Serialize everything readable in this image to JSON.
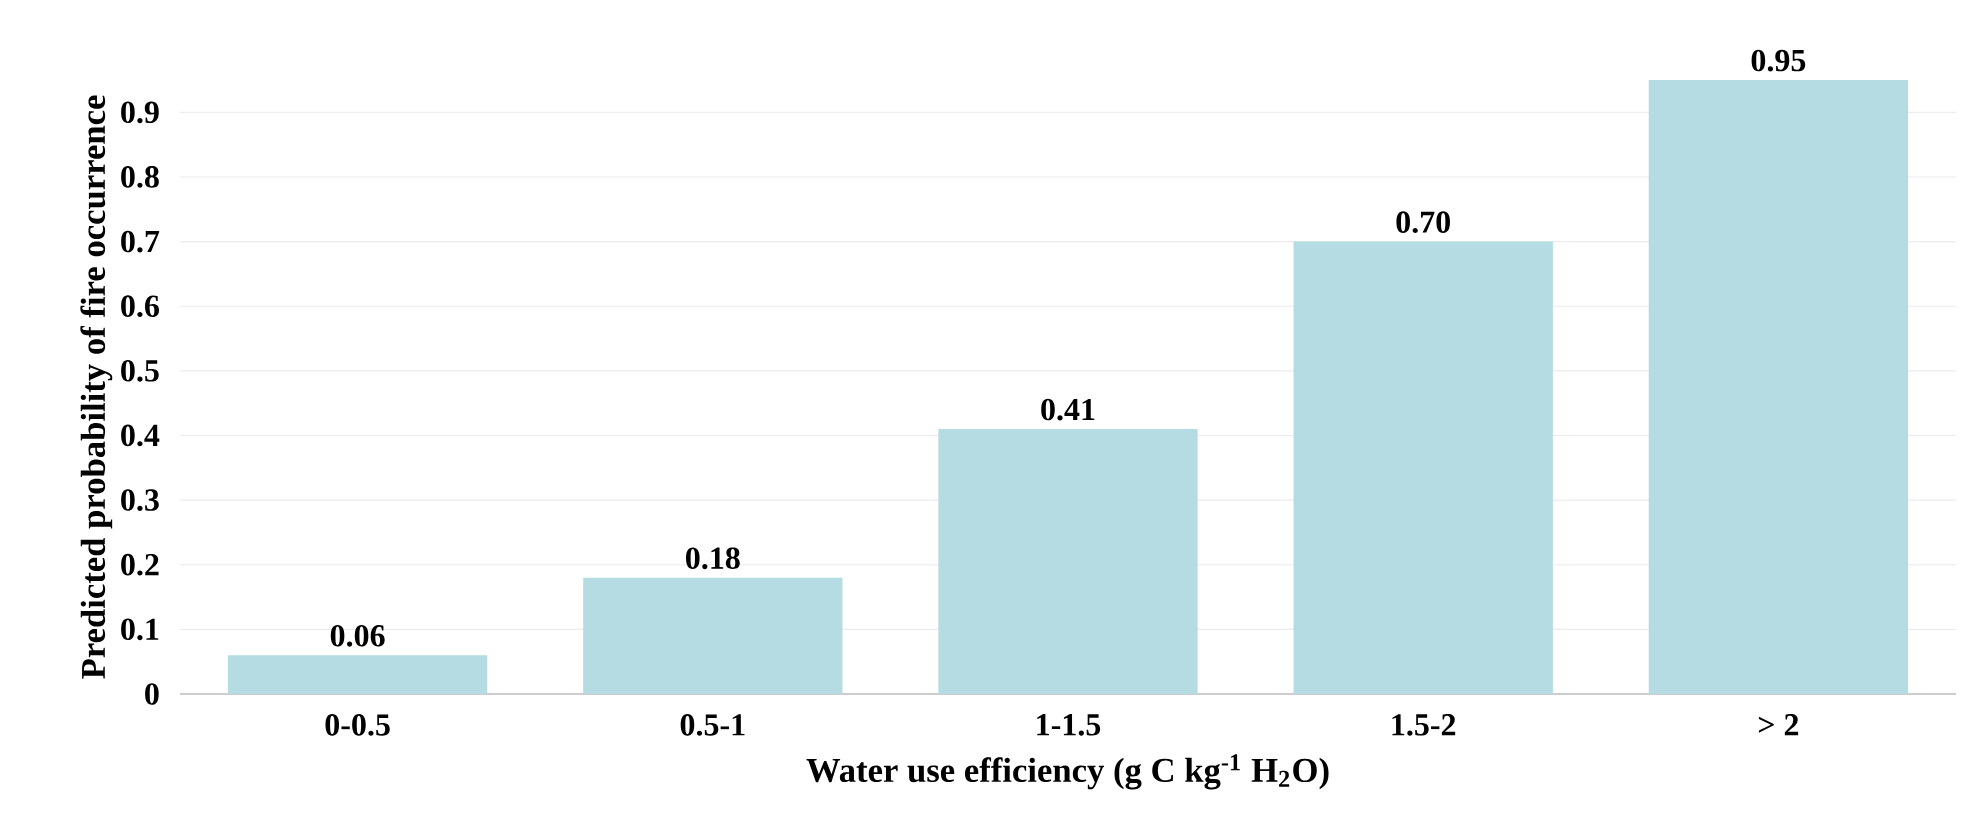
{
  "chart_data": {
    "type": "bar",
    "xlabel": "Water use efficiency (g C kg$^{-1}$ H$_{2}$O)",
    "ylabel": "Predicted probability of fire occurrence",
    "categories": [
      "0-0.5",
      "0.5-1",
      "1-1.5",
      "1.5-2",
      "> 2"
    ],
    "values": [
      0.06,
      0.18,
      0.41,
      0.7,
      0.95
    ],
    "value_labels": [
      "0.06",
      "0.18",
      "0.41",
      "0.70",
      "0.95"
    ],
    "color": "#b4dce2",
    "ylim": [
      0,
      0.95
    ],
    "yticks": [
      0,
      0.1,
      0.2,
      0.3,
      0.4,
      0.5,
      0.6,
      0.7,
      0.8,
      0.9
    ],
    "grid": "y"
  }
}
